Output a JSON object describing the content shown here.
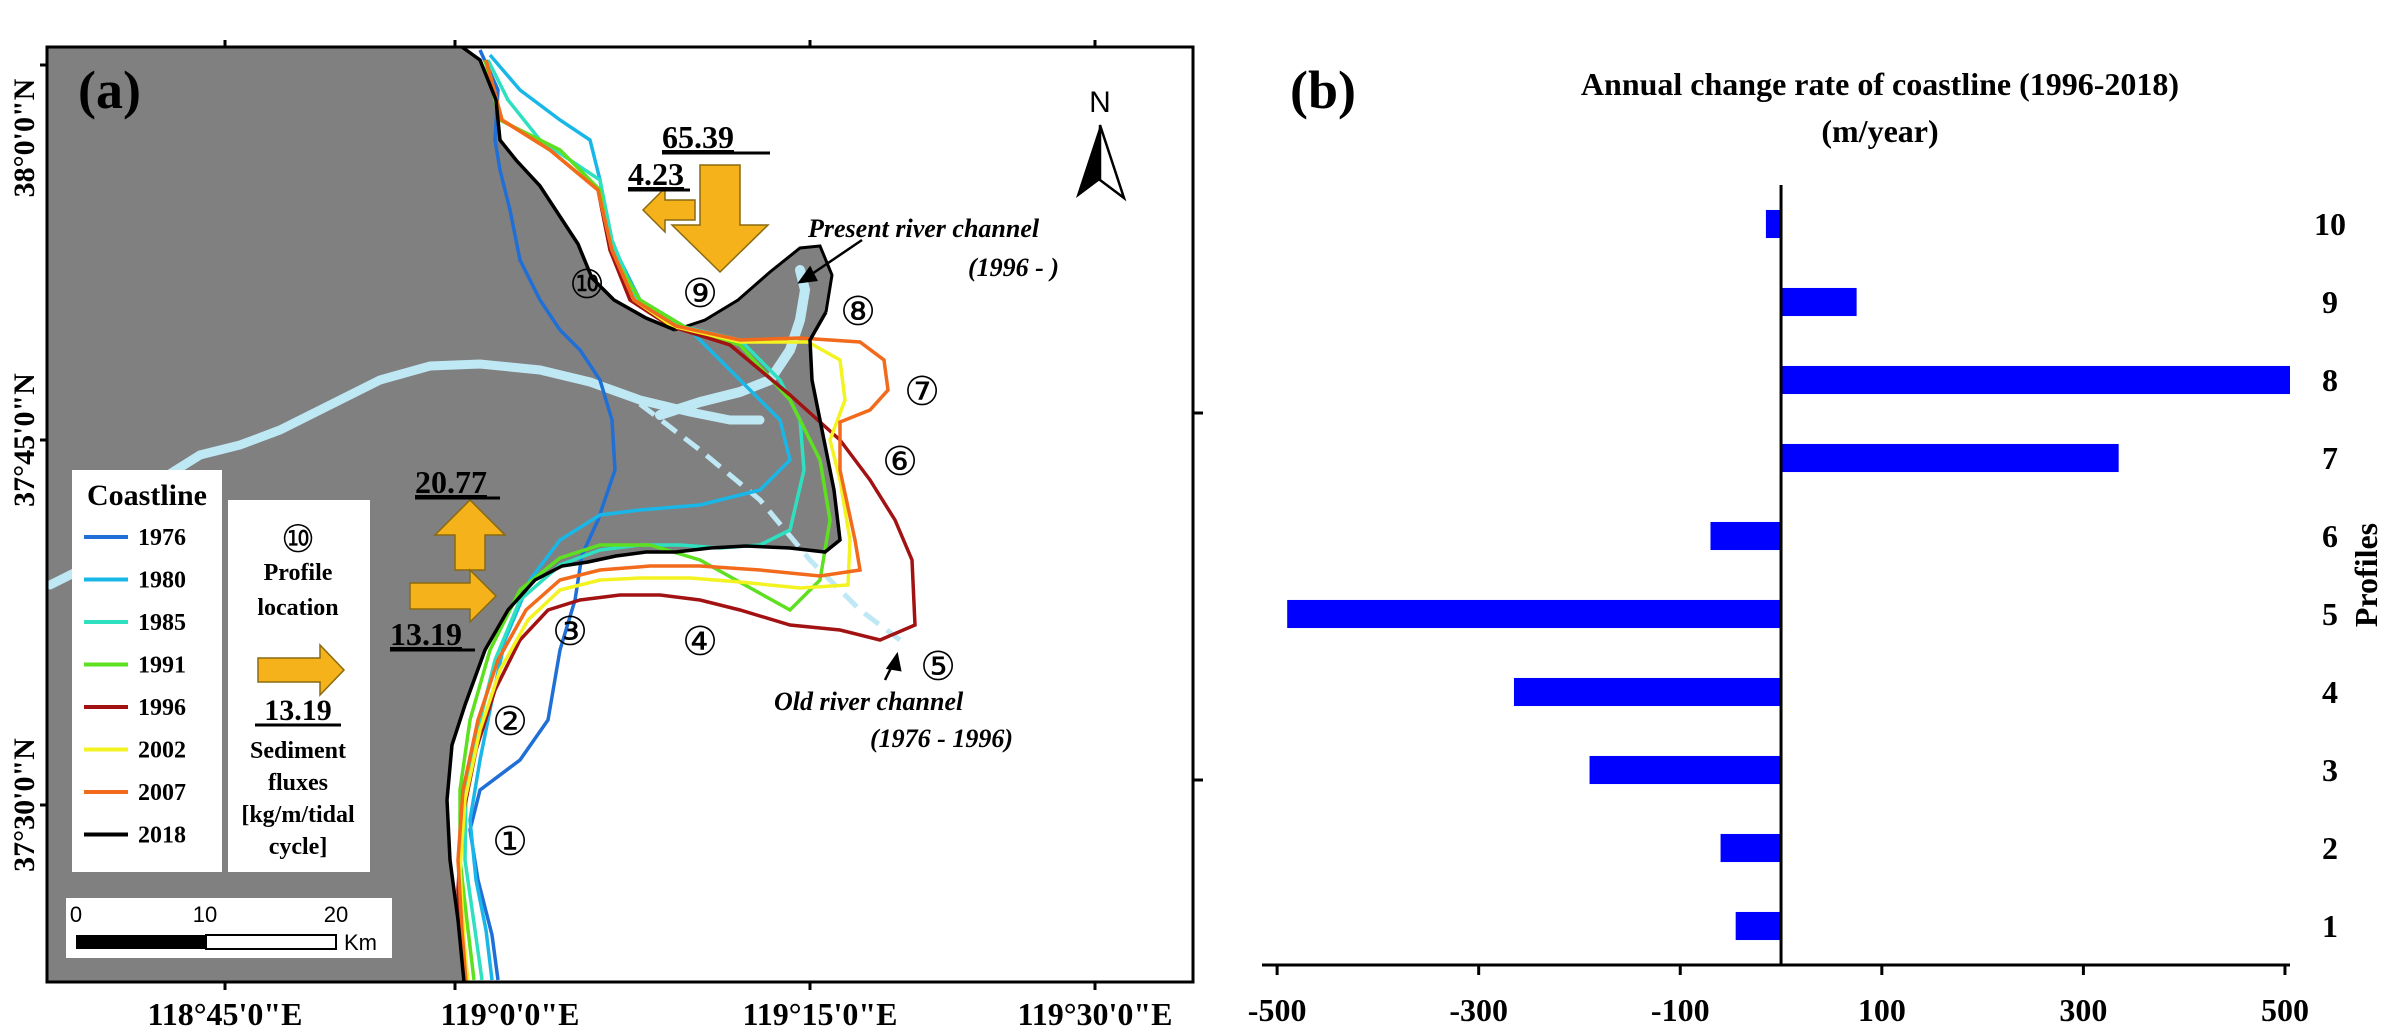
{
  "panel_a": {
    "label": "(a)",
    "lat_labels": [
      "38°0'0\"N",
      "37°45'0\"N",
      "37°30'0\"N"
    ],
    "lon_labels": [
      "118°45'0\"E",
      "119°0'0\"E",
      "119°15'0\"E",
      "119°30'0\"E"
    ],
    "north_label": "N",
    "annotations": {
      "present_channel_line1": "Present river channel",
      "present_channel_line2": "(1996  -  )",
      "old_channel_line1": "Old river channel",
      "old_channel_line2": "(1976 - 1996)"
    },
    "profile_markers": [
      "①",
      "②",
      "③",
      "④",
      "⑤",
      "⑥",
      "⑦",
      "⑧",
      "⑨",
      "⑩"
    ],
    "flux_values": {
      "south_flux": "65.39",
      "west_flux": "4.23",
      "north_flux": "20.77",
      "east_flux": "13.19"
    },
    "legend": {
      "title": "Coastline",
      "items": [
        {
          "year": "1976",
          "color": "#1f6fd6"
        },
        {
          "year": "1980",
          "color": "#19b7e8"
        },
        {
          "year": "1985",
          "color": "#2ee0c0"
        },
        {
          "year": "1991",
          "color": "#5ee021"
        },
        {
          "year": "1996",
          "color": "#a31212"
        },
        {
          "year": "2002",
          "color": "#f3f321"
        },
        {
          "year": "2007",
          "color": "#f26a1b"
        },
        {
          "year": "2018",
          "color": "#000000"
        }
      ],
      "profile_symbol": "⑩",
      "profile_text_line1": "Profile",
      "profile_text_line2": "location",
      "flux_example": "13.19",
      "flux_text_line1": "Sediment",
      "flux_text_line2": "fluxes",
      "flux_text_line3": "[kg/m/tidal",
      "flux_text_line4": "cycle]"
    },
    "scale_bar": {
      "ticks": [
        "0",
        "10",
        "20"
      ],
      "unit": "Km"
    },
    "colors": {
      "land": "#808080",
      "river": "#bfe8f5",
      "arrow": "#f5b21a"
    }
  },
  "panel_b": {
    "label": "(b)",
    "bar_color": "#0000ff"
  },
  "chart_data": {
    "type": "bar",
    "orientation": "horizontal",
    "title": "Annual change rate of coastline (1996-2018)",
    "subtitle": "(m/year)",
    "ylabel": "Profiles",
    "xlabel": "",
    "categories": [
      "1",
      "2",
      "3",
      "4",
      "5",
      "6",
      "7",
      "8",
      "9",
      "10"
    ],
    "values": [
      -45,
      -60,
      -190,
      -265,
      -490,
      -70,
      335,
      505,
      75,
      -15
    ],
    "xlim": [
      -515,
      505
    ],
    "xticks": [
      -500,
      -300,
      -100,
      100,
      300,
      500
    ],
    "grid": false,
    "legend": "none"
  }
}
